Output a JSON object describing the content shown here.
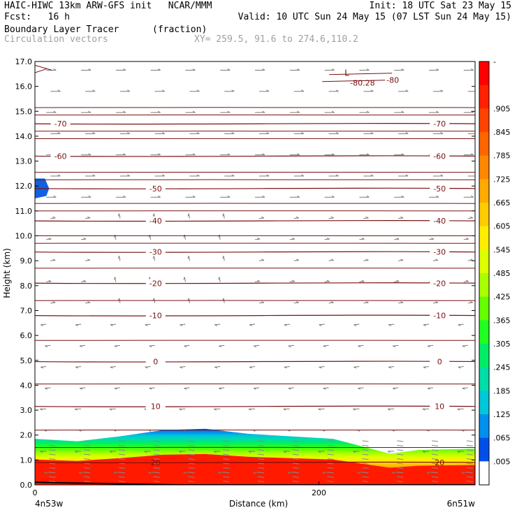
{
  "header": {
    "line1_left": "HAIC-HIWC 13km ARW-GFS init   NCAR/MMM",
    "line1_right": "Init: 18 UTC Sat 23 May 15",
    "line2_left": "Fcst:   16 h",
    "line2_right": "Valid: 10 UTC Sun 24 May 15 (07 LST Sun 24 May 15)",
    "field_name": "Boundary Layer Tracer",
    "field_units": "(fraction)",
    "vector_label": "Circulation vectors",
    "xy_label": "XY= 259.5, 91.6 to 274.6,110.2"
  },
  "chart_data": {
    "type": "heatmap",
    "ylabel": "Height (km)",
    "xlabel": "Distance (km)",
    "ylim": [
      0,
      17
    ],
    "xlim": [
      0,
      310
    ],
    "y_ticks": [
      "0.0",
      "1.0",
      "2.0",
      "3.0",
      "4.0",
      "5.0",
      "6.0",
      "7.0",
      "8.0",
      "9.0",
      "10.0",
      "11.0",
      "12.0",
      "13.0",
      "14.0",
      "15.0",
      "16.0",
      "17.0"
    ],
    "x_ticks": [
      {
        "value": 0,
        "label": "0"
      },
      {
        "value": 200,
        "label": "200"
      }
    ],
    "x_end_labels": {
      "left": "4n53w",
      "right": "6n51w"
    },
    "colorbar": {
      "labels": [
        "-",
        ".905",
        ".845",
        ".785",
        ".725",
        ".665",
        ".605",
        ".545",
        ".485",
        ".425",
        ".365",
        ".305",
        ".245",
        ".185",
        ".125",
        ".065",
        ".005"
      ],
      "colors": [
        "#ff0000",
        "#ff2200",
        "#ff4400",
        "#ff6600",
        "#ff8800",
        "#ffaa00",
        "#ffcc00",
        "#ffee00",
        "#ddff00",
        "#aaff00",
        "#66ff00",
        "#22ff22",
        "#00ee66",
        "#00dda8",
        "#00c8d8",
        "#0090ee",
        "#0050e8",
        "#ffffff"
      ]
    },
    "boundary_layer_top_km": [
      {
        "x": 0,
        "y": 1.85
      },
      {
        "x": 30,
        "y": 1.75
      },
      {
        "x": 60,
        "y": 1.95
      },
      {
        "x": 90,
        "y": 2.2
      },
      {
        "x": 120,
        "y": 2.25
      },
      {
        "x": 150,
        "y": 2.05
      },
      {
        "x": 180,
        "y": 1.95
      },
      {
        "x": 210,
        "y": 1.85
      },
      {
        "x": 230,
        "y": 1.55
      },
      {
        "x": 250,
        "y": 1.25
      },
      {
        "x": 270,
        "y": 1.4
      },
      {
        "x": 310,
        "y": 1.45
      }
    ],
    "upper_tracer_patch": {
      "x": [
        0,
        10
      ],
      "y": [
        11.5,
        12.3
      ]
    },
    "contours": [
      {
        "label": "-70",
        "y": 14.5
      },
      {
        "label": "-60",
        "y": 13.2
      },
      {
        "label": "-50",
        "y": 11.9
      },
      {
        "label": "-40",
        "y": 10.6
      },
      {
        "label": "-30",
        "y": 9.35
      },
      {
        "label": "-20",
        "y": 8.1
      },
      {
        "label": "-10",
        "y": 6.8
      },
      {
        "label": "0",
        "y": 4.95
      },
      {
        "label": "10",
        "y": 3.15
      },
      {
        "label": "20",
        "y": 0.9
      }
    ],
    "low_label": "L",
    "low_values": [
      "-80.28",
      "-80"
    ]
  }
}
